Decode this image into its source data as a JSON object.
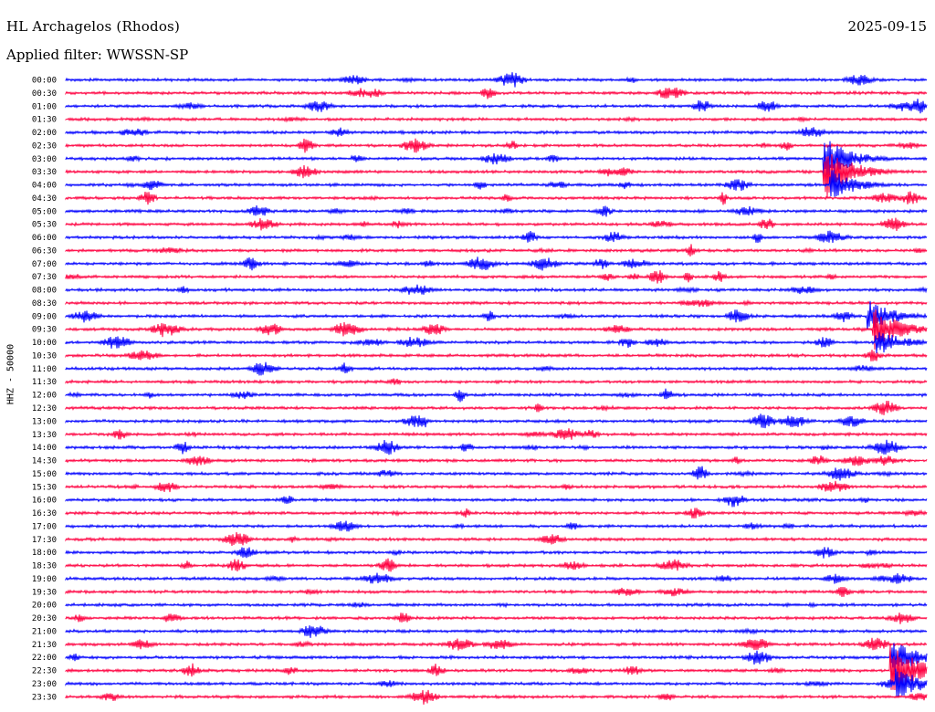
{
  "header": {
    "station": "HL Archagelos (Rhodos)",
    "date": "2025-09-15",
    "filter_label": "Applied filter:",
    "filter_value": "WWSSN-SP"
  },
  "chart_data": {
    "type": "line",
    "title": "HL Archagelos (Rhodos)",
    "subtitle": "Applied filter: WWSSN-SP",
    "ylabel": "HHZ - 50000",
    "xlabel": "",
    "row_labels": [
      "00:00",
      "00:30",
      "01:00",
      "01:30",
      "02:00",
      "02:30",
      "03:00",
      "03:30",
      "04:00",
      "04:30",
      "05:00",
      "05:30",
      "06:00",
      "06:30",
      "07:00",
      "07:30",
      "08:00",
      "08:30",
      "09:00",
      "09:30",
      "10:00",
      "10:30",
      "11:00",
      "11:30",
      "12:00",
      "12:30",
      "13:00",
      "13:30",
      "14:00",
      "14:30",
      "15:00",
      "15:30",
      "16:00",
      "16:30",
      "17:00",
      "17:30",
      "18:00",
      "18:30",
      "19:00",
      "19:30",
      "20:00",
      "20:30",
      "21:00",
      "21:30",
      "22:00",
      "22:30",
      "23:00",
      "23:30"
    ],
    "trace_colors": [
      "#0000ff",
      "#ff0040"
    ],
    "minutes_per_row": 30,
    "x_range_minutes": [
      0,
      30
    ],
    "grid": false,
    "notable_events": [
      {
        "row": "03:00",
        "minute": 26.5,
        "amplitude": 1.6,
        "color_row": 6
      },
      {
        "row": "03:30",
        "minute": 26.5,
        "amplitude": 2.0,
        "color_row": 7
      },
      {
        "row": "04:00",
        "minute": 26.7,
        "amplitude": 1.2,
        "color_row": 8
      },
      {
        "row": "09:00",
        "minute": 28.0,
        "amplitude": 1.2,
        "color_row": 18
      },
      {
        "row": "09:30",
        "minute": 28.2,
        "amplitude": 1.6,
        "color_row": 19
      },
      {
        "row": "10:00",
        "minute": 28.3,
        "amplitude": 1.0,
        "color_row": 20
      },
      {
        "row": "22:00",
        "minute": 28.8,
        "amplitude": 1.4,
        "color_row": 44
      },
      {
        "row": "22:30",
        "minute": 28.8,
        "amplitude": 2.2,
        "color_row": 45
      },
      {
        "row": "23:00",
        "minute": 29.0,
        "amplitude": 1.2,
        "color_row": 46
      }
    ]
  }
}
